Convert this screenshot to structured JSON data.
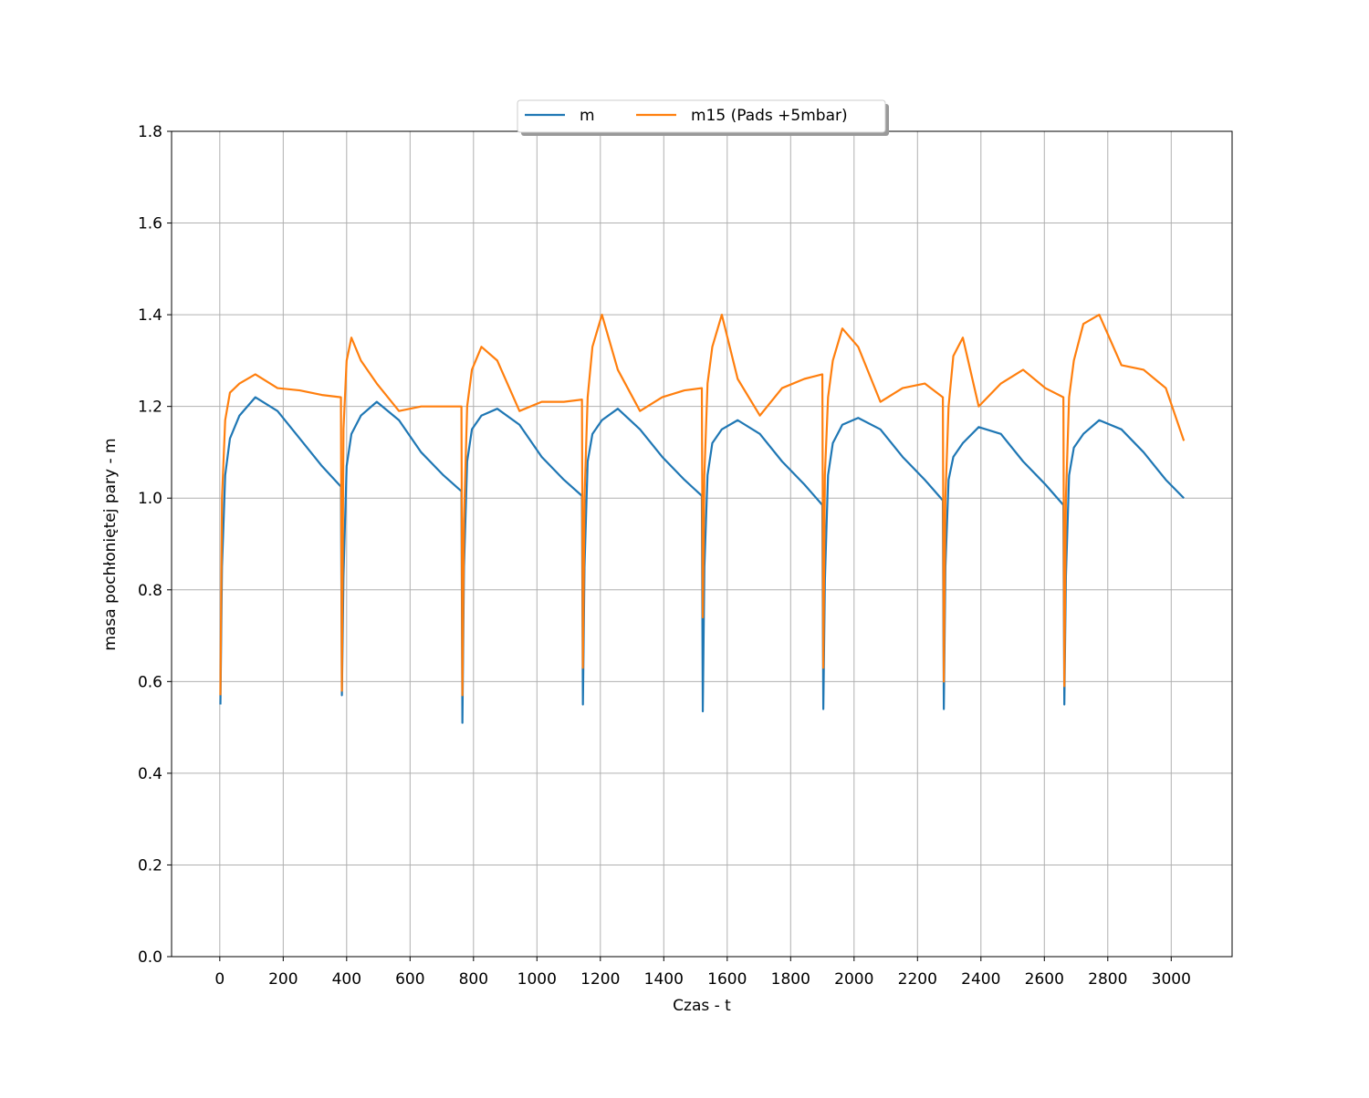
{
  "chart_data": {
    "type": "line",
    "xlabel": "Czas - t",
    "ylabel": "masa pochłoniętej pary - m",
    "xlim": [
      -152,
      3192
    ],
    "ylim": [
      0,
      1.8
    ],
    "xticks": [
      0,
      200,
      400,
      600,
      800,
      1000,
      1200,
      1400,
      1600,
      1800,
      2000,
      2200,
      2400,
      2600,
      2800,
      3000
    ],
    "yticks": [
      {
        "value": 0,
        "label": "0.0"
      },
      0.2,
      0.4,
      0.6,
      0.8,
      {
        "value": 1,
        "label": "1.0"
      },
      1.2,
      1.4,
      1.6,
      1.8
    ],
    "grid": true,
    "legend": "upper center",
    "x": [
      2,
      7,
      17,
      32,
      62,
      112,
      182,
      252,
      322,
      382,
      385,
      390,
      400,
      415,
      445,
      495,
      565,
      635,
      705,
      762,
      765,
      770,
      780,
      795,
      825,
      875,
      945,
      1015,
      1085,
      1142,
      1145,
      1150,
      1160,
      1175,
      1205,
      1255,
      1325,
      1395,
      1465,
      1520,
      1523,
      1528,
      1538,
      1553,
      1583,
      1633,
      1703,
      1773,
      1843,
      1900,
      1903,
      1908,
      1918,
      1933,
      1963,
      2013,
      2083,
      2153,
      2223,
      2280,
      2283,
      2288,
      2298,
      2313,
      2343,
      2393,
      2463,
      2533,
      2603,
      2660,
      2663,
      2668,
      2678,
      2693,
      2723,
      2773,
      2843,
      2913,
      2983,
      3040
    ],
    "series": [
      {
        "name": "m",
        "color": "#1f77b4",
        "values": [
          0.55,
          0.85,
          1.05,
          1.13,
          1.18,
          1.22,
          1.19,
          1.13,
          1.07,
          1.025,
          0.57,
          0.83,
          1.07,
          1.14,
          1.18,
          1.21,
          1.17,
          1.1,
          1.05,
          1.015,
          0.51,
          0.85,
          1.08,
          1.15,
          1.18,
          1.195,
          1.16,
          1.09,
          1.04,
          1.005,
          0.55,
          0.85,
          1.08,
          1.14,
          1.17,
          1.195,
          1.15,
          1.09,
          1.04,
          1.005,
          0.535,
          0.85,
          1.05,
          1.12,
          1.15,
          1.17,
          1.14,
          1.08,
          1.03,
          0.985,
          0.54,
          0.82,
          1.05,
          1.12,
          1.16,
          1.175,
          1.15,
          1.09,
          1.04,
          0.995,
          0.54,
          0.85,
          1.04,
          1.09,
          1.12,
          1.155,
          1.14,
          1.08,
          1.03,
          0.985,
          0.55,
          0.83,
          1.05,
          1.11,
          1.14,
          1.17,
          1.15,
          1.1,
          1.04,
          1.0
        ]
      },
      {
        "name": "m15 (Pads +5mbar)",
        "color": "#ff7f0e",
        "values": [
          0.57,
          1.0,
          1.17,
          1.23,
          1.25,
          1.27,
          1.24,
          1.235,
          1.225,
          1.22,
          0.58,
          1.15,
          1.3,
          1.35,
          1.3,
          1.25,
          1.19,
          1.2,
          1.2,
          1.2,
          0.57,
          0.95,
          1.2,
          1.28,
          1.33,
          1.3,
          1.19,
          1.21,
          1.21,
          1.215,
          0.63,
          1.0,
          1.22,
          1.33,
          1.4,
          1.28,
          1.19,
          1.22,
          1.235,
          1.24,
          0.74,
          1.05,
          1.25,
          1.33,
          1.4,
          1.26,
          1.18,
          1.24,
          1.26,
          1.27,
          0.63,
          1.05,
          1.22,
          1.3,
          1.37,
          1.33,
          1.21,
          1.24,
          1.25,
          1.22,
          0.6,
          1.0,
          1.2,
          1.31,
          1.35,
          1.2,
          1.25,
          1.28,
          1.24,
          1.22,
          0.59,
          1.0,
          1.22,
          1.3,
          1.38,
          1.4,
          1.29,
          1.28,
          1.24,
          1.125
        ]
      }
    ]
  }
}
